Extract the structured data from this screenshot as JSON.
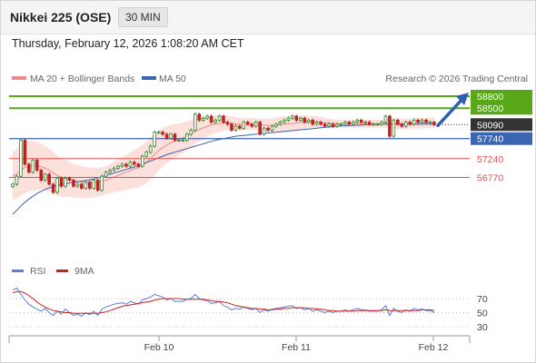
{
  "header": {
    "title": "Nikkei 225 (OSE)",
    "interval": "30 MIN",
    "datetime": "Thursday, February 12, 2026 1:08:20 AM CET"
  },
  "legend": {
    "ma20": "MA 20 + Bollinger Bands",
    "ma50": "MA 50",
    "source": "Research © 2026 Trading Central",
    "rsi": "RSI",
    "rsi_ma": "9MA"
  },
  "colors": {
    "resistance": "#58a81a",
    "pivot": "#3a65b0",
    "support": "#e05050",
    "last": "#333333",
    "bull_candle": "#2f8a2f",
    "bear_candle": "#c02020",
    "ma20": "#f08a8a",
    "ma50": "#3a65b0",
    "band_fill": "#fbe0dc",
    "rsi": "#5b7fd6",
    "rsi_ma": "#cc2020",
    "arrow": "#2f5fb3"
  },
  "chart_data": {
    "type": "candlestick",
    "ylim": [
      55800,
      59000
    ],
    "x_tick_labels": [
      "Feb 10",
      "Feb 11",
      "Feb 12"
    ],
    "levels": [
      {
        "label": "58800",
        "value": 58800,
        "kind": "resistance"
      },
      {
        "label": "58500",
        "value": 58500,
        "kind": "resistance"
      },
      {
        "label": "58090",
        "value": 58090,
        "kind": "last"
      },
      {
        "label": "57740",
        "value": 57740,
        "kind": "pivot"
      },
      {
        "label": "57240",
        "value": 57240,
        "kind": "support"
      },
      {
        "label": "56770",
        "value": 56770,
        "kind": "support"
      }
    ],
    "closes": [
      56600,
      56800,
      57700,
      57100,
      56900,
      57200,
      56950,
      56700,
      56850,
      56600,
      56400,
      56750,
      56550,
      56750,
      56700,
      56550,
      56600,
      56500,
      56650,
      56500,
      56700,
      56450,
      56800,
      56900,
      56950,
      57000,
      57050,
      57100,
      57050,
      57150,
      57100,
      57050,
      57300,
      57400,
      57550,
      57900,
      57900,
      57850,
      57750,
      57850,
      57700,
      57700,
      57700,
      57850,
      57950,
      58350,
      58200,
      58250,
      58300,
      58150,
      58200,
      58300,
      58150,
      58100,
      57950,
      58050,
      58000,
      58150,
      58100,
      58050,
      58150,
      57850,
      58000,
      57950,
      58050,
      58100,
      58150,
      58200,
      58250,
      58300,
      58200,
      58250,
      58150,
      58200,
      58100,
      58150,
      58100,
      58050,
      58100,
      58050,
      58100,
      58100,
      58150,
      58100,
      58150,
      58200,
      58150,
      58150,
      58100,
      58100,
      58100,
      58150,
      58300,
      57800,
      58200,
      58100,
      58050,
      58150,
      58100,
      58200,
      58150,
      58200,
      58150,
      58150,
      58090
    ],
    "ma20": [
      56800,
      56860,
      56950,
      57020,
      57050,
      57060,
      57060,
      57040,
      57000,
      56950,
      56880,
      56820,
      56770,
      56740,
      56720,
      56690,
      56670,
      56650,
      56640,
      56630,
      56640,
      56650,
      56670,
      56700,
      56740,
      56780,
      56820,
      56860,
      56900,
      56940,
      56980,
      57020,
      57080,
      57150,
      57240,
      57350,
      57440,
      57520,
      57580,
      57640,
      57680,
      57720,
      57760,
      57810,
      57860,
      57920,
      57970,
      58010,
      58050,
      58080,
      58100,
      58120,
      58130,
      58130,
      58120,
      58110,
      58100,
      58100,
      58100,
      58100,
      58100,
      58090,
      58080,
      58070,
      58070,
      58080,
      58090,
      58100,
      58110,
      58120,
      58130,
      58140,
      58150,
      58160,
      58160,
      58160,
      58150,
      58140,
      58130,
      58120,
      58110,
      58110,
      58110,
      58110,
      58110,
      58110,
      58110,
      58110,
      58110,
      58110,
      58110,
      58110,
      58120,
      58110,
      58110,
      58110,
      58110,
      58110,
      58110,
      58120,
      58120,
      58130,
      58130,
      58130,
      58130
    ],
    "band_width": [
      600,
      620,
      640,
      650,
      640,
      620,
      600,
      580,
      560,
      540,
      520,
      500,
      480,
      460,
      440,
      420,
      410,
      400,
      390,
      380,
      370,
      360,
      350,
      350,
      360,
      380,
      400,
      420,
      440,
      460,
      480,
      500,
      510,
      520,
      520,
      520,
      500,
      480,
      460,
      440,
      420,
      400,
      380,
      360,
      340,
      320,
      300,
      280,
      260,
      240,
      220,
      210,
      200,
      190,
      180,
      170,
      160,
      150,
      150,
      150,
      150,
      150,
      160,
      170,
      180,
      190,
      200,
      200,
      200,
      200,
      190,
      180,
      170,
      160,
      150,
      140,
      130,
      120,
      110,
      100,
      100,
      100,
      100,
      100,
      100,
      100,
      100,
      100,
      100,
      100,
      100,
      100,
      110,
      120,
      130,
      130,
      130,
      130,
      130,
      130,
      130,
      130,
      130,
      130,
      130
    ],
    "ma50": [
      55850,
      55950,
      56050,
      56150,
      56230,
      56300,
      56370,
      56420,
      56470,
      56510,
      56540,
      56570,
      56590,
      56610,
      56630,
      56650,
      56660,
      56680,
      56690,
      56710,
      56730,
      56760,
      56790,
      56820,
      56850,
      56880,
      56910,
      56940,
      56970,
      57000,
      57030,
      57060,
      57100,
      57140,
      57180,
      57220,
      57260,
      57300,
      57340,
      57370,
      57400,
      57430,
      57460,
      57490,
      57520,
      57550,
      57580,
      57610,
      57640,
      57670,
      57700,
      57720,
      57740,
      57760,
      57780,
      57800,
      57810,
      57820,
      57830,
      57840,
      57850,
      57860,
      57870,
      57880,
      57890,
      57900,
      57910,
      57920,
      57930,
      57940,
      57950,
      57960,
      57970,
      57980,
      57990,
      58000,
      58010,
      58020,
      58030,
      58040,
      58050,
      58055,
      58060,
      58065,
      58070,
      58075,
      58080,
      58085,
      58090,
      58095,
      58100,
      58100,
      58100,
      58100,
      58100,
      58100,
      58100,
      58100,
      58100,
      58100,
      58100,
      58100,
      58100,
      58100,
      58100
    ],
    "rsi_axis": {
      "ylim": [
        20,
        90
      ],
      "ticks": [
        70,
        50,
        30
      ]
    },
    "rsi": [
      82,
      85,
      76,
      68,
      62,
      58,
      55,
      52,
      56,
      50,
      46,
      52,
      48,
      55,
      50,
      46,
      48,
      45,
      50,
      47,
      52,
      46,
      55,
      58,
      60,
      62,
      63,
      64,
      62,
      66,
      64,
      62,
      68,
      70,
      72,
      76,
      74,
      72,
      68,
      70,
      66,
      66,
      66,
      69,
      70,
      76,
      70,
      68,
      67,
      63,
      64,
      66,
      60,
      58,
      54,
      56,
      55,
      58,
      56,
      54,
      56,
      50,
      54,
      52,
      55,
      56,
      57,
      58,
      59,
      60,
      56,
      57,
      54,
      56,
      52,
      54,
      52,
      50,
      52,
      50,
      52,
      52,
      54,
      52,
      54,
      56,
      54,
      54,
      52,
      52,
      52,
      54,
      60,
      46,
      56,
      52,
      50,
      54,
      52,
      56,
      54,
      55,
      53,
      53,
      50
    ],
    "rsi_ma": [
      78,
      80,
      80,
      78,
      74,
      70,
      65,
      61,
      58,
      55,
      53,
      52,
      51,
      50,
      50,
      49,
      49,
      49,
      49,
      49,
      49,
      49,
      50,
      51,
      53,
      55,
      57,
      59,
      60,
      61,
      62,
      63,
      64,
      65,
      66,
      68,
      69,
      70,
      70,
      70,
      70,
      70,
      69,
      69,
      69,
      69,
      69,
      69,
      68,
      67,
      66,
      66,
      65,
      64,
      62,
      60,
      59,
      58,
      57,
      56,
      56,
      55,
      55,
      54,
      54,
      55,
      55,
      56,
      56,
      57,
      57,
      57,
      57,
      56,
      56,
      55,
      55,
      54,
      53,
      53,
      52,
      52,
      52,
      52,
      52,
      53,
      53,
      53,
      53,
      53,
      53,
      53,
      54,
      53,
      53,
      53,
      53,
      53,
      53,
      53,
      53,
      54,
      54,
      54,
      53
    ]
  }
}
